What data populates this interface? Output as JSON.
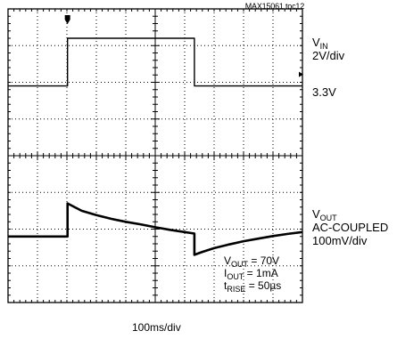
{
  "doc_id": "MAX15061 toc12",
  "vin": {
    "name": "V",
    "sub": "IN",
    "scale": "2V/div",
    "level": "3.3V"
  },
  "vout": {
    "name": "V",
    "sub": "OUT",
    "coupling": "AC-COUPLED",
    "scale": "100mV/div"
  },
  "annotations": [
    {
      "name": "V",
      "sub": "OUT",
      "value": " = 70V"
    },
    {
      "name": "I",
      "sub": "OUT",
      "value": " = 1mA"
    },
    {
      "name": "t",
      "sub": "RISE",
      "value": " = 50µs"
    }
  ],
  "timebase": "100ms/div",
  "colors": {
    "trace": "#000000",
    "grid": "#000000",
    "border": "#000000"
  },
  "chart_data": {
    "type": "line",
    "grid": {
      "x_divisions": 10,
      "y_divisions": 8
    },
    "x_unit": "div",
    "xlim": [
      0,
      10
    ],
    "ylim": [
      -4,
      4
    ],
    "series": [
      {
        "x": [
          0,
          2.02,
          2.02,
          6.33,
          6.33,
          10
        ],
        "y": [
          1.9,
          1.9,
          3.2,
          3.2,
          1.9,
          1.9
        ]
      },
      {
        "x": [
          0,
          2.02,
          2.02,
          2.5,
          3.0,
          3.5,
          4.0,
          4.5,
          5.0,
          5.5,
          6.0,
          6.33,
          6.33,
          6.6,
          7.0,
          7.5,
          8.0,
          8.5,
          9.0,
          9.5,
          10
        ],
        "y": [
          -2.2,
          -2.2,
          -1.3,
          -1.5,
          -1.62,
          -1.72,
          -1.8,
          -1.87,
          -1.95,
          -2.02,
          -2.08,
          -2.12,
          -2.7,
          -2.62,
          -2.52,
          -2.42,
          -2.33,
          -2.26,
          -2.19,
          -2.13,
          -2.08
        ]
      }
    ]
  }
}
